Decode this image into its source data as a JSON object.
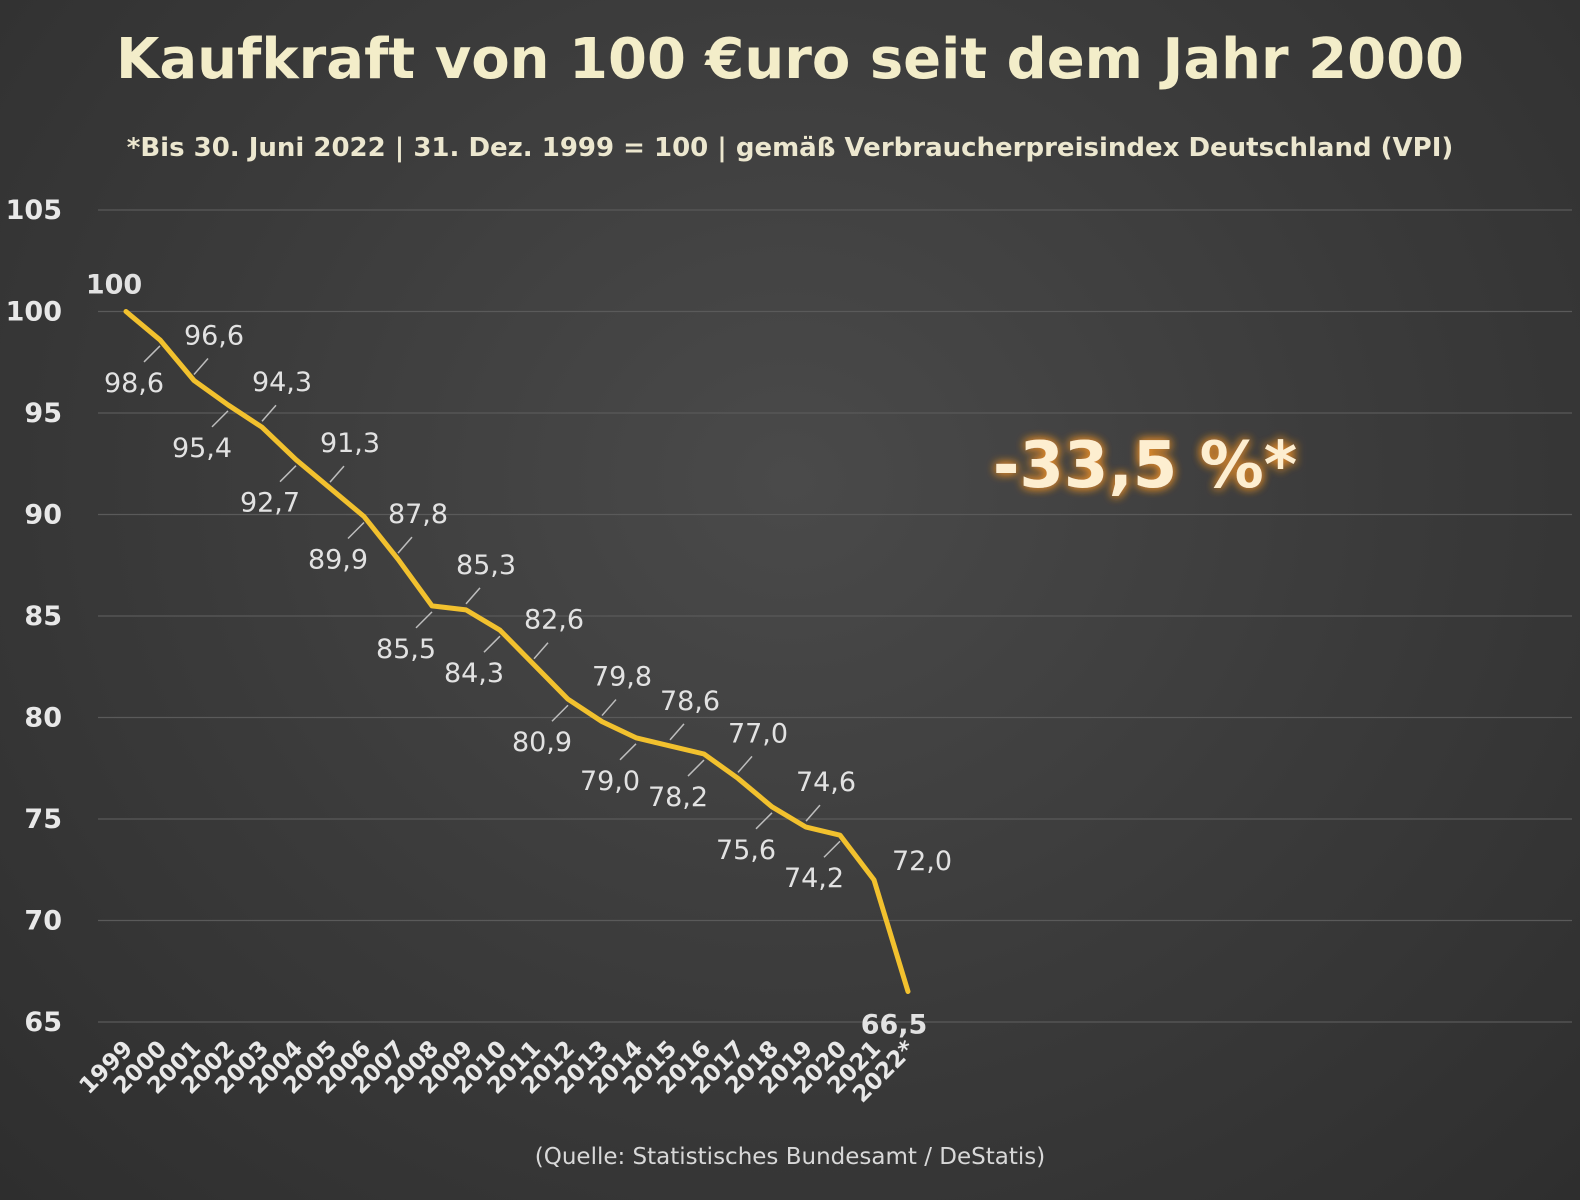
{
  "chart_data": {
    "type": "line",
    "title": "Kaufkraft von 100 €uro seit dem Jahr 2000",
    "subtitle": "*Bis 30. Juni 2022 | 31. Dez. 1999 = 100 | gemäß Verbraucherpreisindex Deutschland (VPI)",
    "xlabel": "",
    "ylabel": "",
    "ylim": [
      65,
      105
    ],
    "yticks": [
      "105",
      "100",
      "95",
      "90",
      "85",
      "80",
      "75",
      "70",
      "65"
    ],
    "grid": true,
    "categories": [
      "1999",
      "2000",
      "2001",
      "2002",
      "2003",
      "2004",
      "2005",
      "2006",
      "2007",
      "2008",
      "2009",
      "2010",
      "2011",
      "2012",
      "2013",
      "2014",
      "2015",
      "2016",
      "2017",
      "2018",
      "2019",
      "2020",
      "2021",
      "2022*"
    ],
    "values": [
      100,
      98.6,
      96.6,
      95.4,
      94.3,
      92.7,
      91.3,
      89.9,
      87.8,
      85.5,
      85.3,
      84.3,
      82.6,
      80.9,
      79.8,
      79.0,
      78.6,
      78.2,
      77.0,
      75.6,
      74.6,
      74.2,
      72.0,
      66.5
    ],
    "data_labels": [
      "100",
      "98,6",
      "96,6",
      "95,4",
      "94,3",
      "92,7",
      "91,3",
      "89,9",
      "87,8",
      "85,5",
      "85,3",
      "84,3",
      "82,6",
      "80,9",
      "79,8",
      "79,0",
      "78,6",
      "78,2",
      "77,0",
      "75,6",
      "74,6",
      "74,2",
      "72,0",
      "66,5"
    ],
    "annotation": "-33,5 %*",
    "source": "(Quelle: Statistisches Bundesamt / DeStatis)",
    "colors": {
      "line": "#f2c12e",
      "start_label": "#9ccc7a",
      "end_label": "#f3a0b0",
      "annotation_glow": "#e08a2a"
    }
  }
}
